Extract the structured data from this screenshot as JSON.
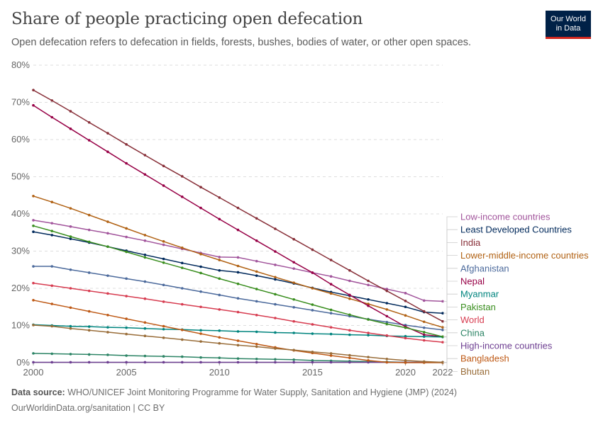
{
  "header": {
    "title": "Share of people practicing open defecation",
    "subtitle": "Open defecation refers to defecation in fields, forests, bushes, bodies of water, or other open spaces."
  },
  "logo": {
    "line1": "Our World",
    "line2": "in Data",
    "background": "#002147",
    "accent": "#ce261e"
  },
  "footer": {
    "source_label": "Data source:",
    "source_text": "WHO/UNICEF Joint Monitoring Programme for Water Supply, Sanitation and Hygiene (JMP) (2024)",
    "url_text": "OurWorldinData.org/sanitation | CC BY"
  },
  "chart_data": {
    "type": "line",
    "title": "Share of people practicing open defecation",
    "xlabel": "",
    "ylabel": "",
    "xlim": [
      2000,
      2022
    ],
    "ylim": [
      0,
      80
    ],
    "x_ticks": [
      2000,
      2005,
      2010,
      2015,
      2020,
      2022
    ],
    "y_ticks": [
      0,
      10,
      20,
      30,
      40,
      50,
      60,
      70,
      80
    ],
    "y_tick_labels": [
      "0%",
      "10%",
      "20%",
      "30%",
      "40%",
      "50%",
      "60%",
      "70%",
      "80%"
    ],
    "x": [
      2000,
      2001,
      2002,
      2003,
      2004,
      2005,
      2006,
      2007,
      2008,
      2009,
      2010,
      2011,
      2012,
      2013,
      2014,
      2015,
      2016,
      2017,
      2018,
      2019,
      2020,
      2021,
      2022
    ],
    "grid": "horizontal-dashed",
    "legend": "right",
    "series": [
      {
        "name": "Low-income countries",
        "color": "#a2559c",
        "values": [
          38.3,
          37.5,
          36.6,
          35.7,
          34.8,
          33.8,
          32.8,
          31.7,
          30.6,
          29.5,
          28.4,
          28.3,
          27.3,
          26.3,
          25.3,
          24.2,
          23.2,
          22.0,
          20.9,
          19.8,
          18.7,
          16.7,
          16.5
        ]
      },
      {
        "name": "Least Developed Countries",
        "color": "#00295b",
        "values": [
          35.2,
          34.3,
          33.3,
          32.3,
          31.2,
          30.1,
          29.0,
          27.9,
          26.8,
          25.8,
          24.8,
          24.3,
          23.4,
          22.4,
          21.3,
          20.1,
          19.0,
          18.0,
          17.0,
          16.0,
          15.0,
          13.6,
          13.3
        ]
      },
      {
        "name": "India",
        "color": "#883039",
        "values": [
          73.3,
          70.5,
          67.6,
          64.6,
          61.7,
          58.7,
          55.8,
          52.9,
          50.1,
          47.2,
          44.4,
          41.6,
          38.8,
          36.0,
          33.2,
          30.4,
          27.6,
          24.8,
          22.0,
          19.3,
          16.6,
          13.8,
          11.1
        ]
      },
      {
        "name": "Lower-middle-income countries",
        "color": "#b16214",
        "values": [
          44.8,
          43.2,
          41.5,
          39.7,
          37.9,
          36.1,
          34.3,
          32.6,
          30.9,
          29.2,
          27.6,
          26.0,
          24.5,
          23.0,
          21.5,
          20.0,
          18.6,
          17.2,
          15.8,
          14.3,
          12.7,
          11.0,
          9.5
        ]
      },
      {
        "name": "Afghanistan",
        "color": "#4c6a9c",
        "values": [
          25.9,
          25.9,
          25.0,
          24.2,
          23.4,
          22.6,
          21.8,
          20.9,
          20.0,
          19.1,
          18.2,
          17.3,
          16.5,
          15.7,
          14.9,
          14.1,
          13.3,
          12.5,
          11.7,
          10.9,
          10.1,
          9.4,
          8.8
        ]
      },
      {
        "name": "Nepal",
        "color": "#970046",
        "values": [
          69.2,
          66.0,
          62.9,
          59.8,
          56.7,
          53.6,
          50.6,
          47.6,
          44.6,
          41.6,
          38.6,
          35.7,
          32.8,
          29.9,
          27.0,
          24.2,
          21.1,
          18.2,
          15.3,
          12.5,
          9.7,
          7.5,
          7.0
        ]
      },
      {
        "name": "Myanmar",
        "color": "#00847e",
        "values": [
          10.2,
          10.0,
          9.8,
          9.7,
          9.5,
          9.4,
          9.2,
          9.0,
          8.9,
          8.7,
          8.6,
          8.4,
          8.3,
          8.1,
          8.0,
          7.8,
          7.7,
          7.5,
          7.4,
          7.2,
          7.1,
          7.0,
          6.9
        ]
      },
      {
        "name": "Pakistan",
        "color": "#3a8e1f",
        "values": [
          36.8,
          35.4,
          33.9,
          32.5,
          31.2,
          29.8,
          28.3,
          26.9,
          25.5,
          24.1,
          22.6,
          21.2,
          19.8,
          18.4,
          17.0,
          15.6,
          14.2,
          12.9,
          11.6,
          10.4,
          9.4,
          8.2,
          7.0
        ]
      },
      {
        "name": "World",
        "color": "#d73c50",
        "values": [
          21.4,
          20.7,
          20.0,
          19.3,
          18.6,
          17.9,
          17.2,
          16.4,
          15.7,
          15.0,
          14.3,
          13.6,
          12.8,
          12.0,
          11.1,
          10.3,
          9.5,
          8.7,
          8.0,
          7.3,
          6.6,
          6.0,
          5.5
        ]
      },
      {
        "name": "China",
        "color": "#2c8465",
        "values": [
          2.5,
          2.4,
          2.3,
          2.2,
          2.1,
          1.9,
          1.8,
          1.7,
          1.6,
          1.4,
          1.3,
          1.1,
          1.0,
          0.9,
          0.8,
          0.6,
          0.5,
          0.4,
          0.3,
          0.2,
          0.1,
          0.1,
          0.1
        ]
      },
      {
        "name": "High-income countries",
        "color": "#6d3e91",
        "values": [
          0.1,
          0.1,
          0.1,
          0.1,
          0.1,
          0.1,
          0.1,
          0.1,
          0.1,
          0.1,
          0.1,
          0.1,
          0.1,
          0.1,
          0.1,
          0.1,
          0.1,
          0.1,
          0.1,
          0.1,
          0.1,
          0.1,
          0.1
        ]
      },
      {
        "name": "Bangladesh",
        "color": "#be5915",
        "values": [
          16.8,
          15.8,
          14.8,
          13.8,
          12.8,
          11.8,
          10.8,
          9.8,
          8.8,
          7.8,
          6.8,
          5.9,
          5.0,
          4.1,
          3.3,
          2.6,
          1.9,
          1.3,
          0.6,
          0.1,
          0.0,
          0.0,
          0.0
        ]
      },
      {
        "name": "Bhutan",
        "color": "#996d39",
        "values": [
          10.1,
          9.8,
          9.2,
          8.7,
          8.2,
          7.7,
          7.2,
          6.7,
          6.2,
          5.7,
          5.2,
          4.7,
          4.3,
          3.8,
          3.4,
          2.9,
          2.5,
          2.0,
          1.5,
          1.0,
          0.6,
          0.3,
          0.1
        ]
      }
    ]
  }
}
